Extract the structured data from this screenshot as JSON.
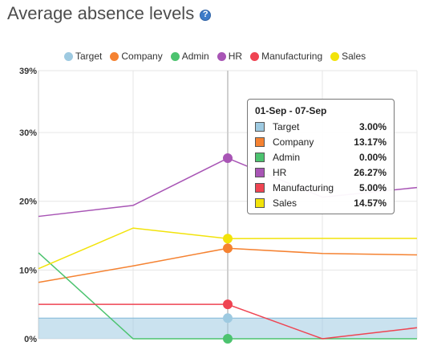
{
  "header": {
    "title": "Average absence levels",
    "help_glyph": "?"
  },
  "chart_data": {
    "type": "line",
    "title": "Average absence levels",
    "xlabel": "",
    "ylabel": "",
    "ylim": [
      0,
      39
    ],
    "yticks": [
      {
        "value": 0,
        "label": "0%"
      },
      {
        "value": 10,
        "label": "10%"
      },
      {
        "value": 20,
        "label": "20%"
      },
      {
        "value": 30,
        "label": "30%"
      },
      {
        "value": 39,
        "label": "39%"
      }
    ],
    "x": [
      0,
      1,
      2,
      3,
      4
    ],
    "highlight_index": 2,
    "grid": true,
    "legend_position": "top",
    "series": [
      {
        "name": "Target",
        "color": "#9ecae1",
        "type": "area",
        "values": [
          3.0,
          3.0,
          3.0,
          3.0,
          3.0
        ]
      },
      {
        "name": "Company",
        "color": "#f58231",
        "values": [
          8.2,
          10.6,
          13.17,
          12.4,
          12.2
        ]
      },
      {
        "name": "Admin",
        "color": "#4cc36f",
        "values": [
          12.5,
          0.0,
          0.0,
          0.0,
          0.0
        ]
      },
      {
        "name": "HR",
        "color": "#a855b5",
        "values": [
          17.8,
          19.4,
          26.27,
          20.6,
          22.0
        ]
      },
      {
        "name": "Manufacturing",
        "color": "#ef4452",
        "values": [
          5.0,
          5.0,
          5.0,
          0.0,
          1.6
        ]
      },
      {
        "name": "Sales",
        "color": "#f2e30a",
        "values": [
          10.2,
          16.1,
          14.57,
          14.6,
          14.6
        ]
      }
    ]
  },
  "tooltip": {
    "title": "01-Sep - 07-Sep",
    "rows": [
      {
        "name": "Target",
        "value": "3.00%",
        "color": "#9ecae1"
      },
      {
        "name": "Company",
        "value": "13.17%",
        "color": "#f58231"
      },
      {
        "name": "Admin",
        "value": "0.00%",
        "color": "#4cc36f"
      },
      {
        "name": "HR",
        "value": "26.27%",
        "color": "#a855b5"
      },
      {
        "name": "Manufacturing",
        "value": "5.00%",
        "color": "#ef4452"
      },
      {
        "name": "Sales",
        "value": "14.57%",
        "color": "#f2e30a"
      }
    ]
  }
}
